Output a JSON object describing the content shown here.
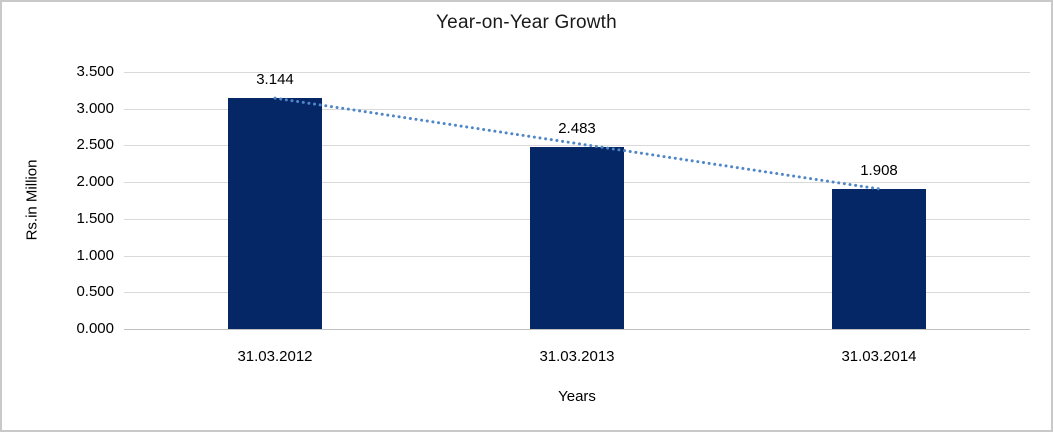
{
  "window": {
    "background": "#FFFFFF",
    "border_color": "#C9C9C9"
  },
  "chart_data": {
    "type": "bar",
    "title": "Year-on-Year Growth",
    "xlabel": "Years",
    "ylabel": "Rs.in Million",
    "categories": [
      "31.03.2012",
      "31.03.2013",
      "31.03.2014"
    ],
    "values": [
      3.144,
      2.483,
      1.908
    ],
    "value_labels": [
      "3.144",
      "2.483",
      "1.908"
    ],
    "y_ticks": [
      "3.500",
      "3.000",
      "2.500",
      "2.000",
      "1.500",
      "1.000",
      "0.500",
      "0.000"
    ],
    "y_tick_values": [
      3.5,
      3.0,
      2.5,
      2.0,
      1.5,
      1.0,
      0.5,
      0.0
    ],
    "ylim": [
      0,
      3.5
    ],
    "grid": true,
    "legend": "none",
    "trendline": {
      "type": "linear",
      "style": "dotted",
      "color": "#4F86C8"
    },
    "colors": {
      "bar": "#062765",
      "gridline": "#D9D9D9",
      "text": "#000000",
      "title": "#1A1A1A"
    }
  }
}
